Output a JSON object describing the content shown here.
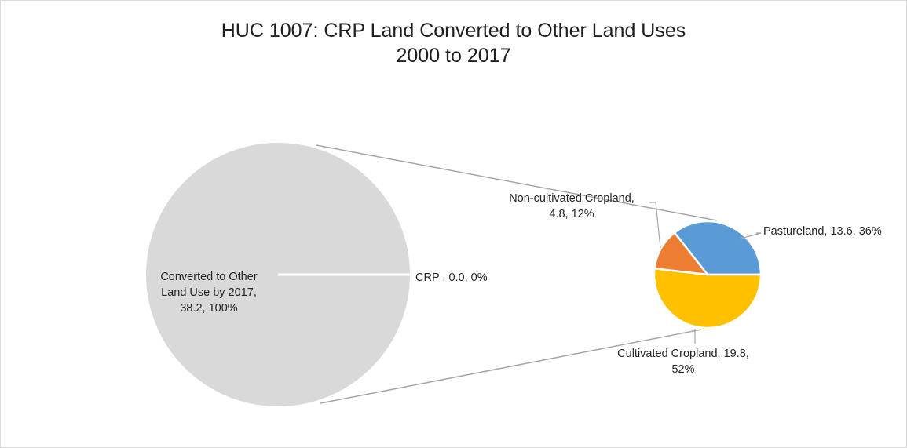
{
  "chart_data": {
    "type": "pie",
    "subtype": "pie-of-pie",
    "title": "HUC 1007: CRP Land Converted to Other Land Uses",
    "subtitle": "2000 to 2017",
    "main_pie": {
      "slices": [
        {
          "label_lines": [
            "Converted to Other",
            "Land Use by 2017,",
            "38.2, 100%"
          ],
          "value": 38.2,
          "percent": 100,
          "color": "#d9d9d9"
        },
        {
          "label_lines": [
            "CRP , 0.0, 0%"
          ],
          "value": 0.0,
          "percent": 0,
          "color": "#d9d9d9"
        }
      ]
    },
    "secondary_pie": {
      "slices": [
        {
          "label_lines": [
            "Pastureland, 13.6, 36%"
          ],
          "value": 13.6,
          "percent": 36,
          "color": "#5b9bd5"
        },
        {
          "label_lines": [
            "Cultivated Cropland, 19.8,",
            "52%"
          ],
          "value": 19.8,
          "percent": 52,
          "color": "#ffc000"
        },
        {
          "label_lines": [
            "Non-cultivated Cropland,",
            "4.8, 12%"
          ],
          "value": 4.8,
          "percent": 12,
          "color": "#ed7d31"
        }
      ]
    },
    "legend": "none",
    "connector_color": "#a6a6a6",
    "leader_line_color": "#a6a6a6"
  }
}
